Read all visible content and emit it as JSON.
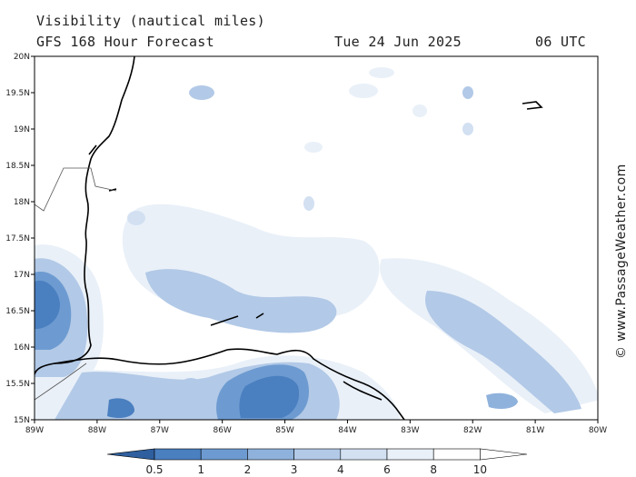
{
  "header": {
    "title": "Visibility (nautical miles)",
    "subtitle": "GFS 168 Hour Forecast",
    "date": "Tue 24 Jun 2025",
    "time": "06 UTC"
  },
  "credit": "© www.PassageWeather.com",
  "axes": {
    "lat_labels": [
      "20N",
      "19.5N",
      "19N",
      "18.5N",
      "18N",
      "17.5N",
      "17N",
      "16.5N",
      "16N",
      "15.5N",
      "15N"
    ],
    "lon_labels": [
      "89W",
      "88W",
      "87W",
      "86W",
      "85W",
      "84W",
      "83W",
      "82W",
      "81W",
      "80W"
    ]
  },
  "legend": {
    "labels": [
      "0.5",
      "1",
      "2",
      "3",
      "4",
      "6",
      "8",
      "10"
    ],
    "colors": [
      "#2f5f9e",
      "#4a7fc0",
      "#6d9bd1",
      "#8fb2dc",
      "#b2c9e7",
      "#d2e0f2",
      "#e9f0f8",
      "#ffffff"
    ]
  }
}
